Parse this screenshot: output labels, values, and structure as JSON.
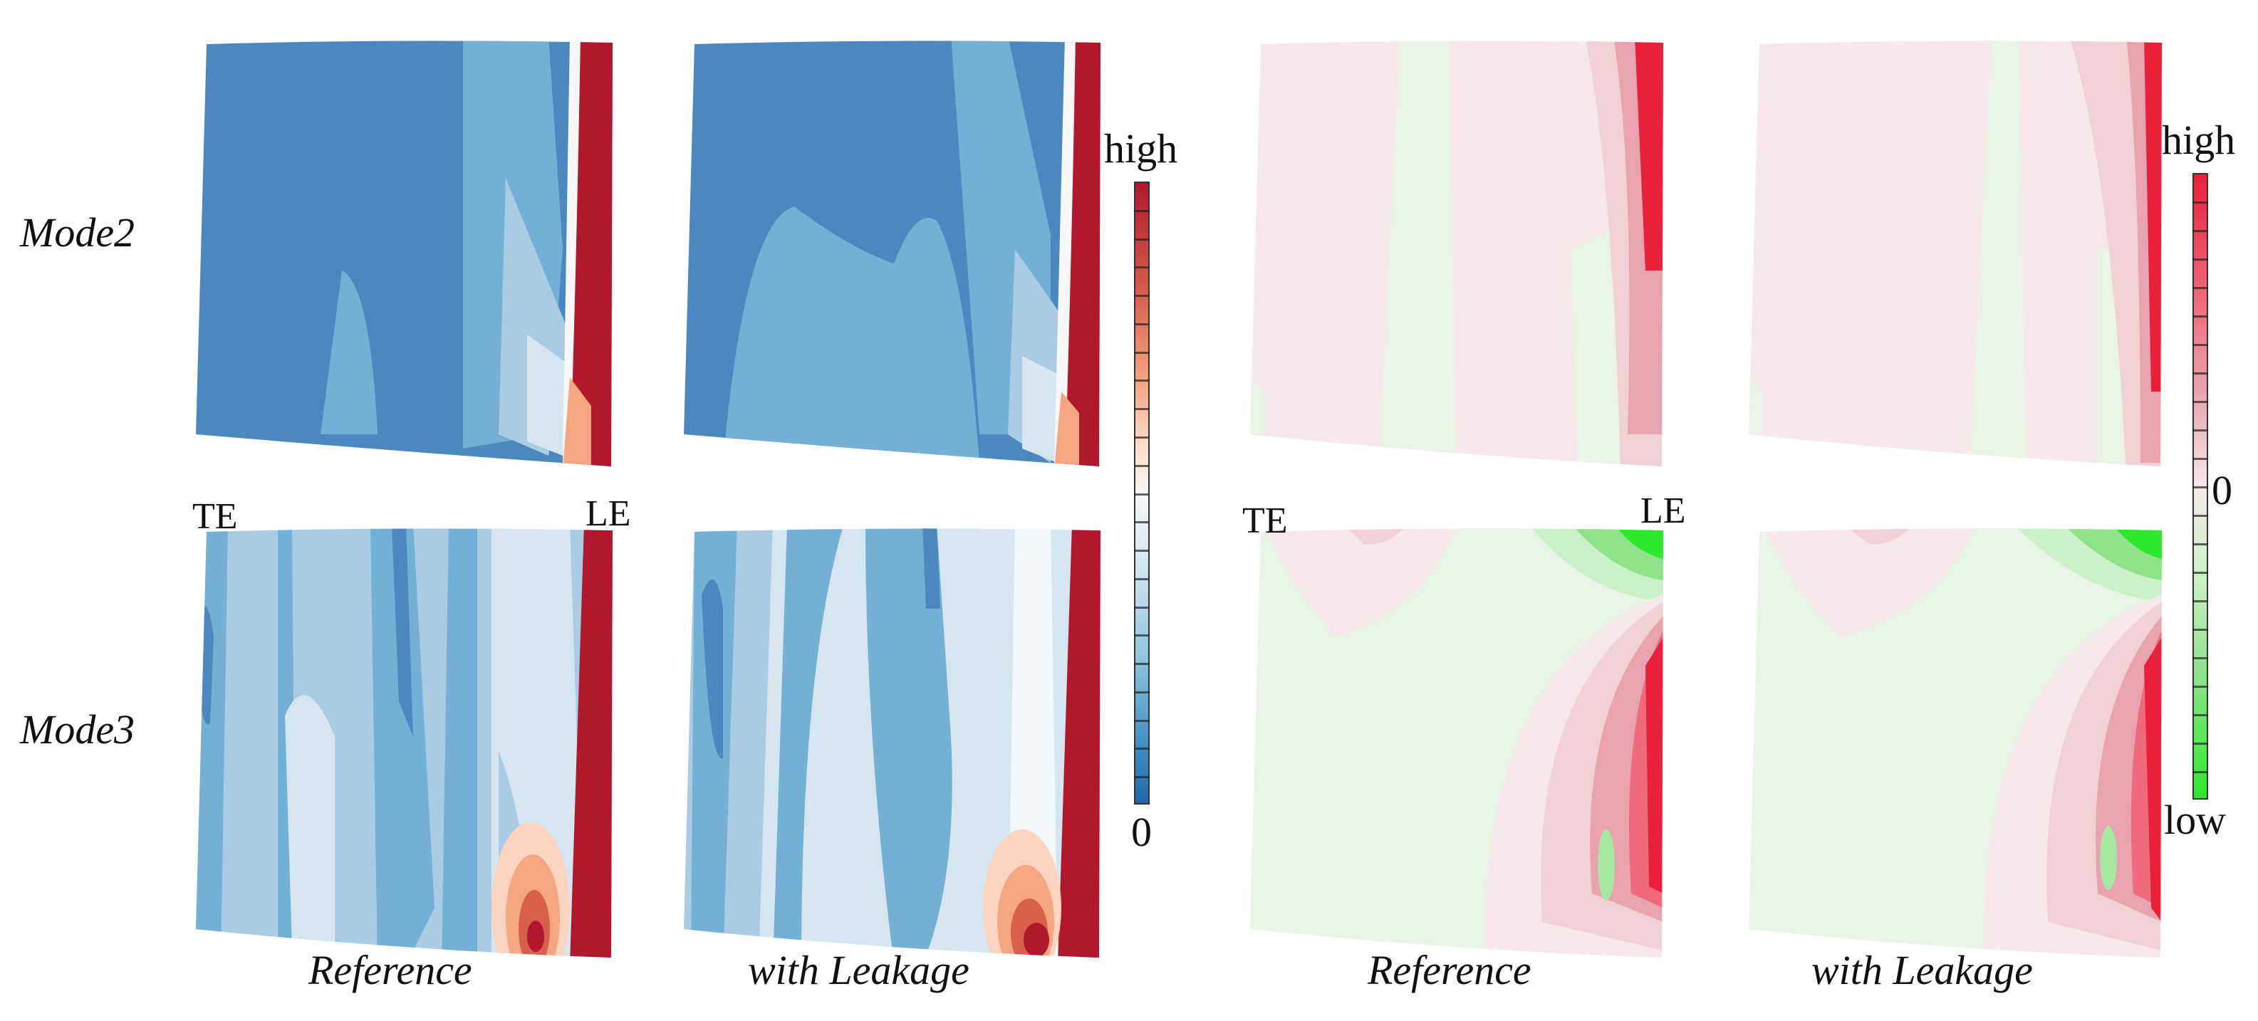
{
  "row_labels": {
    "mode2": "Mode2",
    "mode3": "Mode3"
  },
  "edge_labels": {
    "te": "TE",
    "le": "LE"
  },
  "column_labels": {
    "reference": "Reference",
    "with_leakage": "with Leakage"
  },
  "colorbar_left": {
    "top": "high",
    "bottom": "0",
    "colors": [
      "#b2182b",
      "#f4a582",
      "#f7f7f7",
      "#92c5de",
      "#2166ac"
    ]
  },
  "colorbar_right": {
    "top": "high",
    "middle": "0",
    "bottom": "low",
    "colors": [
      "#e8203a",
      "#f4dce0",
      "#2ee82e"
    ]
  },
  "colors": {
    "blue_dark": "#4a88bf",
    "blue_mid": "#74afd4",
    "blue_light": "#a9cbe3",
    "blue_pale": "#d6e6f1",
    "red_dark": "#b2182b",
    "pink_bg": "#f6e8ea",
    "green_bg": "#e9f3e8",
    "red_hot": "#e8203a",
    "green_hot": "#2ee82e"
  }
}
